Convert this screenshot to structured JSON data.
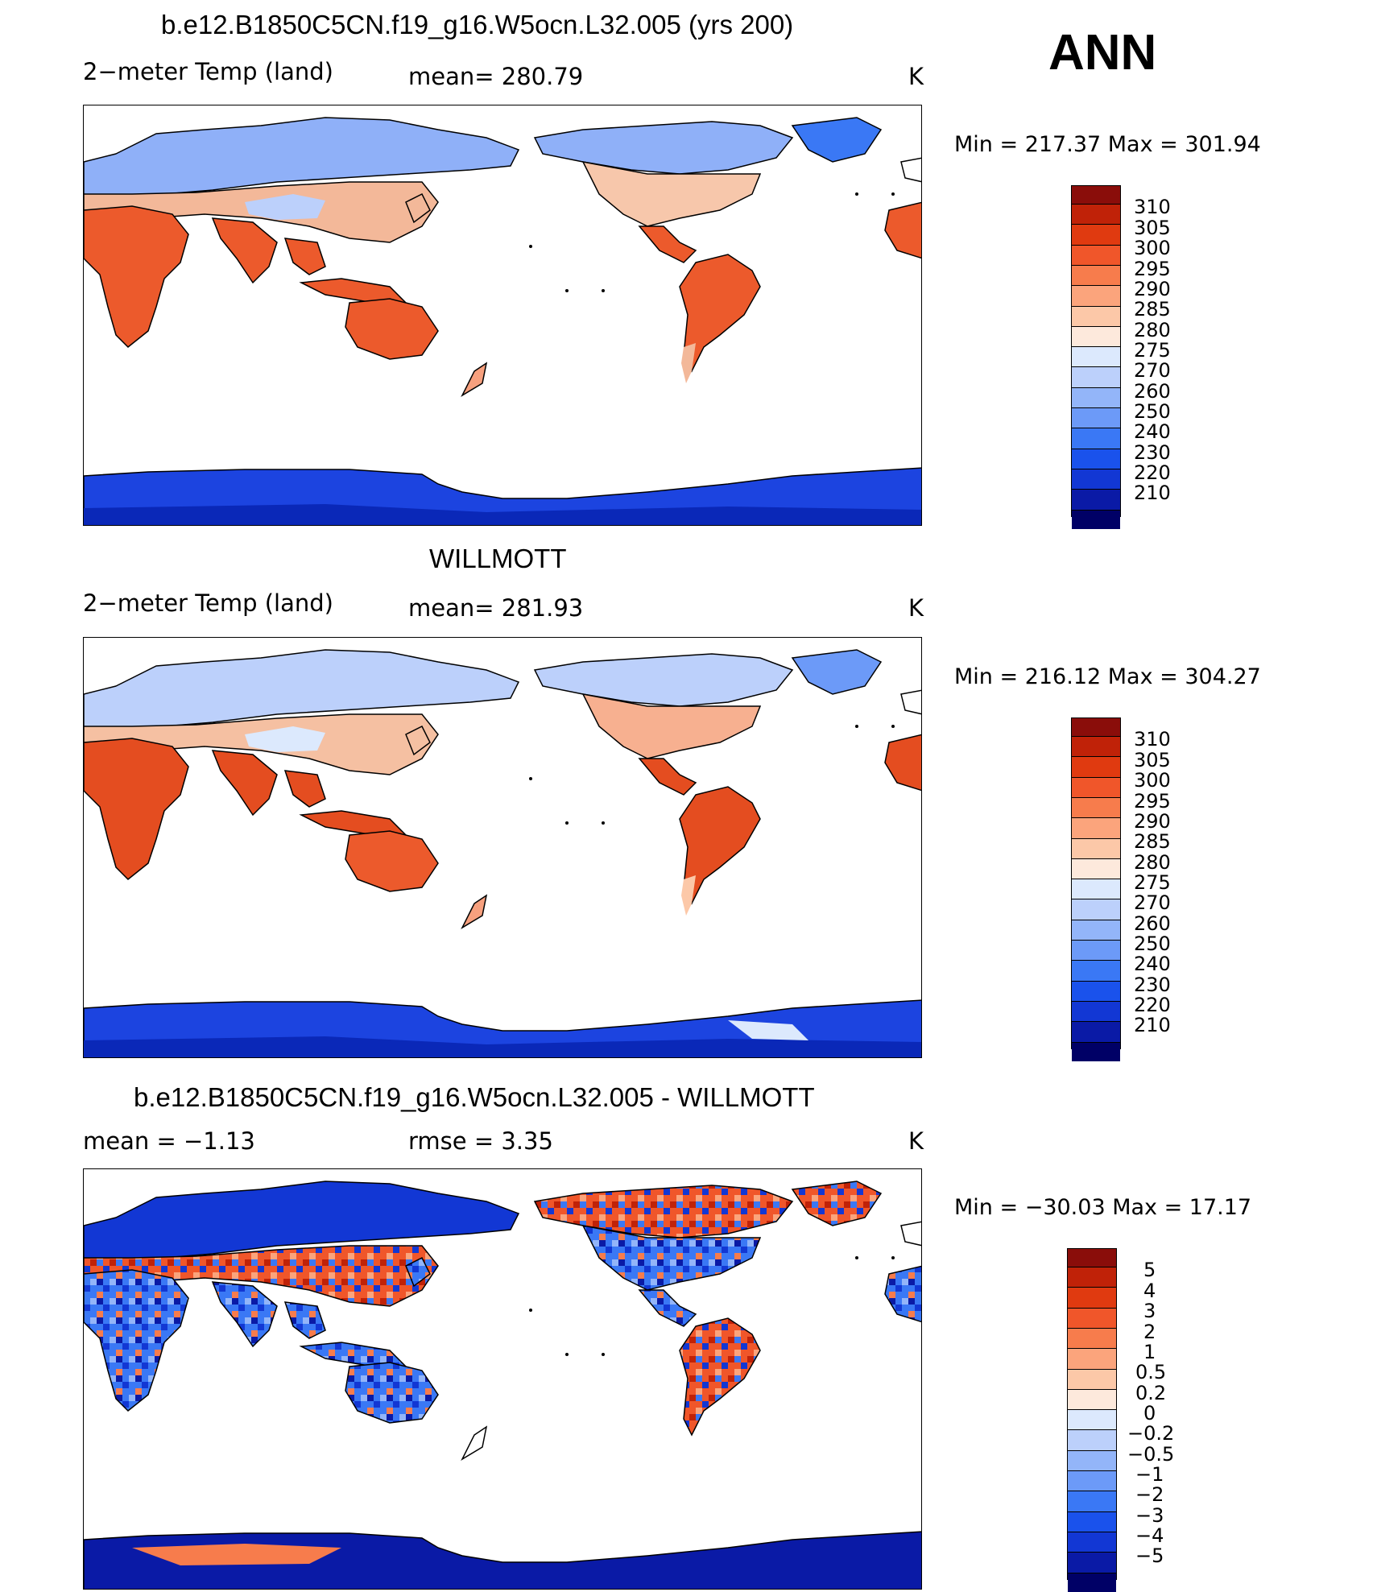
{
  "season": "ANN",
  "units": "K",
  "colors": {
    "abs_scale": [
      "#000066",
      "#0a1aa6",
      "#1237d4",
      "#1a52ec",
      "#3a78f5",
      "#6c9af8",
      "#93b5f9",
      "#bcd0fb",
      "#dce9fd",
      "#fde9dc",
      "#fcc8a8",
      "#fba47c",
      "#f77c4c",
      "#f0562a",
      "#e03a10",
      "#c02208",
      "#8a0d0a"
    ],
    "diff_scale": [
      "#000066",
      "#0a1aa6",
      "#1237d4",
      "#1a52ec",
      "#3a78f5",
      "#6c9af8",
      "#93b5f9",
      "#bcd0fb",
      "#dce9fd",
      "#fde9dc",
      "#fcc8a8",
      "#fba47c",
      "#f77c4c",
      "#f0562a",
      "#e03a10",
      "#c02208",
      "#8a0d0a"
    ],
    "land_warm": "#ec5a2c",
    "land_cold": "#8fb0f8",
    "antarctic": "#1c44e0"
  },
  "panels": [
    {
      "title": "b.e12.B1850C5CN.f19_g16.W5ocn.L32.005 (yrs 200)",
      "left_label": "2−meter Temp (land)",
      "center_label": "mean=  280.79",
      "right_label": "K",
      "minmax": "Min  =  217.37  Max  =  301.94",
      "colorbar_labels": [
        "310",
        "305",
        "300",
        "295",
        "290",
        "285",
        "280",
        "275",
        "270",
        "260",
        "250",
        "240",
        "230",
        "220",
        "210"
      ]
    },
    {
      "title": "WILLMOTT",
      "left_label": "2−meter Temp (land)",
      "center_label": "mean=  281.93",
      "right_label": "K",
      "minmax": "Min  =  216.12  Max  =  304.27",
      "colorbar_labels": [
        "310",
        "305",
        "300",
        "295",
        "290",
        "285",
        "280",
        "275",
        "270",
        "260",
        "250",
        "240",
        "230",
        "220",
        "210"
      ]
    },
    {
      "title": "b.e12.B1850C5CN.f19_g16.W5ocn.L32.005 - WILLMOTT",
      "left_label": "mean  =    −1.13",
      "center_label": "rmse  =      3.35",
      "right_label": "K",
      "minmax": "Min  =  −30.03  Max  =    17.17",
      "colorbar_labels": [
        "5",
        "4",
        "3",
        "2",
        "1",
        "0.5",
        "0.2",
        "0",
        "−0.2",
        "−0.5",
        "−1",
        "−2",
        "−3",
        "−4",
        "−5"
      ]
    }
  ]
}
